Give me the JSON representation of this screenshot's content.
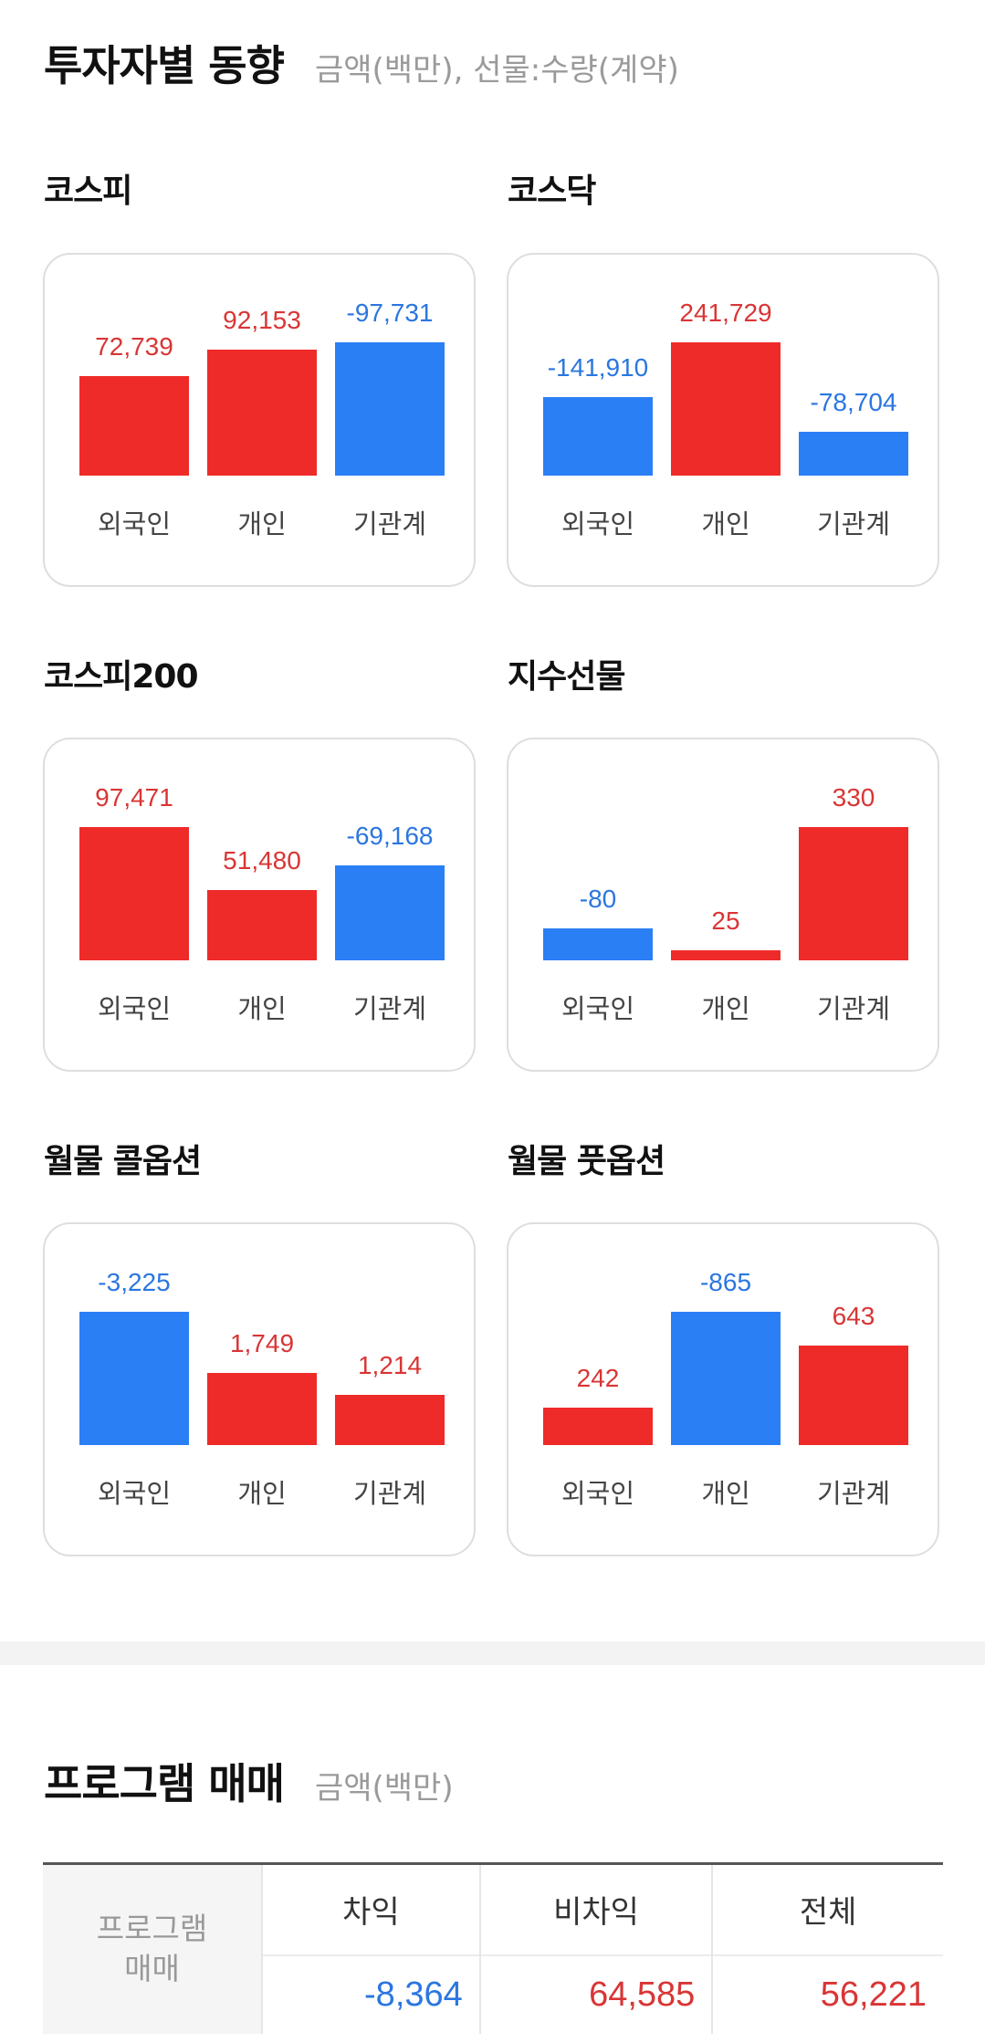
{
  "investor": {
    "title": "투자자별 동향",
    "subtitle": "금액(백만), 선물:수량(계약)",
    "charts": [
      {
        "name": "코스피",
        "categories": [
          "외국인",
          "개인",
          "기관계"
        ],
        "values": [
          72739,
          92153,
          -97731
        ],
        "labels": [
          "72,739",
          "92,153",
          "-97,731"
        ]
      },
      {
        "name": "코스닥",
        "categories": [
          "외국인",
          "개인",
          "기관계"
        ],
        "values": [
          -141910,
          241729,
          -78704
        ],
        "labels": [
          "-141,910",
          "241,729",
          "-78,704"
        ]
      },
      {
        "name": "코스피200",
        "categories": [
          "외국인",
          "개인",
          "기관계"
        ],
        "values": [
          97471,
          51480,
          -69168
        ],
        "labels": [
          "97,471",
          "51,480",
          "-69,168"
        ]
      },
      {
        "name": "지수선물",
        "categories": [
          "외국인",
          "개인",
          "기관계"
        ],
        "values": [
          -80,
          25,
          330
        ],
        "labels": [
          "-80",
          "25",
          "330"
        ]
      },
      {
        "name": "월물 콜옵션",
        "categories": [
          "외국인",
          "개인",
          "기관계"
        ],
        "values": [
          -3225,
          1749,
          1214
        ],
        "labels": [
          "-3,225",
          "1,749",
          "1,214"
        ]
      },
      {
        "name": "월물 풋옵션",
        "categories": [
          "외국인",
          "개인",
          "기관계"
        ],
        "values": [
          242,
          -865,
          643
        ],
        "labels": [
          "242",
          "-865",
          "643"
        ]
      }
    ]
  },
  "chart_data": [
    {
      "type": "bar",
      "title": "코스피",
      "categories": [
        "외국인",
        "개인",
        "기관계"
      ],
      "values": [
        72739,
        92153,
        -97731
      ]
    },
    {
      "type": "bar",
      "title": "코스닥",
      "categories": [
        "외국인",
        "개인",
        "기관계"
      ],
      "values": [
        -141910,
        241729,
        -78704
      ]
    },
    {
      "type": "bar",
      "title": "코스피200",
      "categories": [
        "외국인",
        "개인",
        "기관계"
      ],
      "values": [
        97471,
        51480,
        -69168
      ]
    },
    {
      "type": "bar",
      "title": "지수선물",
      "categories": [
        "외국인",
        "개인",
        "기관계"
      ],
      "values": [
        -80,
        25,
        330
      ]
    },
    {
      "type": "bar",
      "title": "월물 콜옵션",
      "categories": [
        "외국인",
        "개인",
        "기관계"
      ],
      "values": [
        -3225,
        1749,
        1214
      ]
    },
    {
      "type": "bar",
      "title": "월물 풋옵션",
      "categories": [
        "외국인",
        "개인",
        "기관계"
      ],
      "values": [
        242,
        -865,
        643
      ]
    }
  ],
  "colors": {
    "positive": "#ee2b29",
    "negative": "#2b7ff5",
    "positive_text": "#d93535",
    "negative_text": "#2b76e0"
  },
  "program": {
    "title": "프로그램 매매",
    "subtitle": "금액(백만)",
    "row_label": "프로그램\n매매",
    "headers": [
      "차익",
      "비차익",
      "전체"
    ],
    "values": [
      "-8,364",
      "64,585",
      "56,221"
    ],
    "signs": [
      -1,
      1,
      1
    ]
  }
}
